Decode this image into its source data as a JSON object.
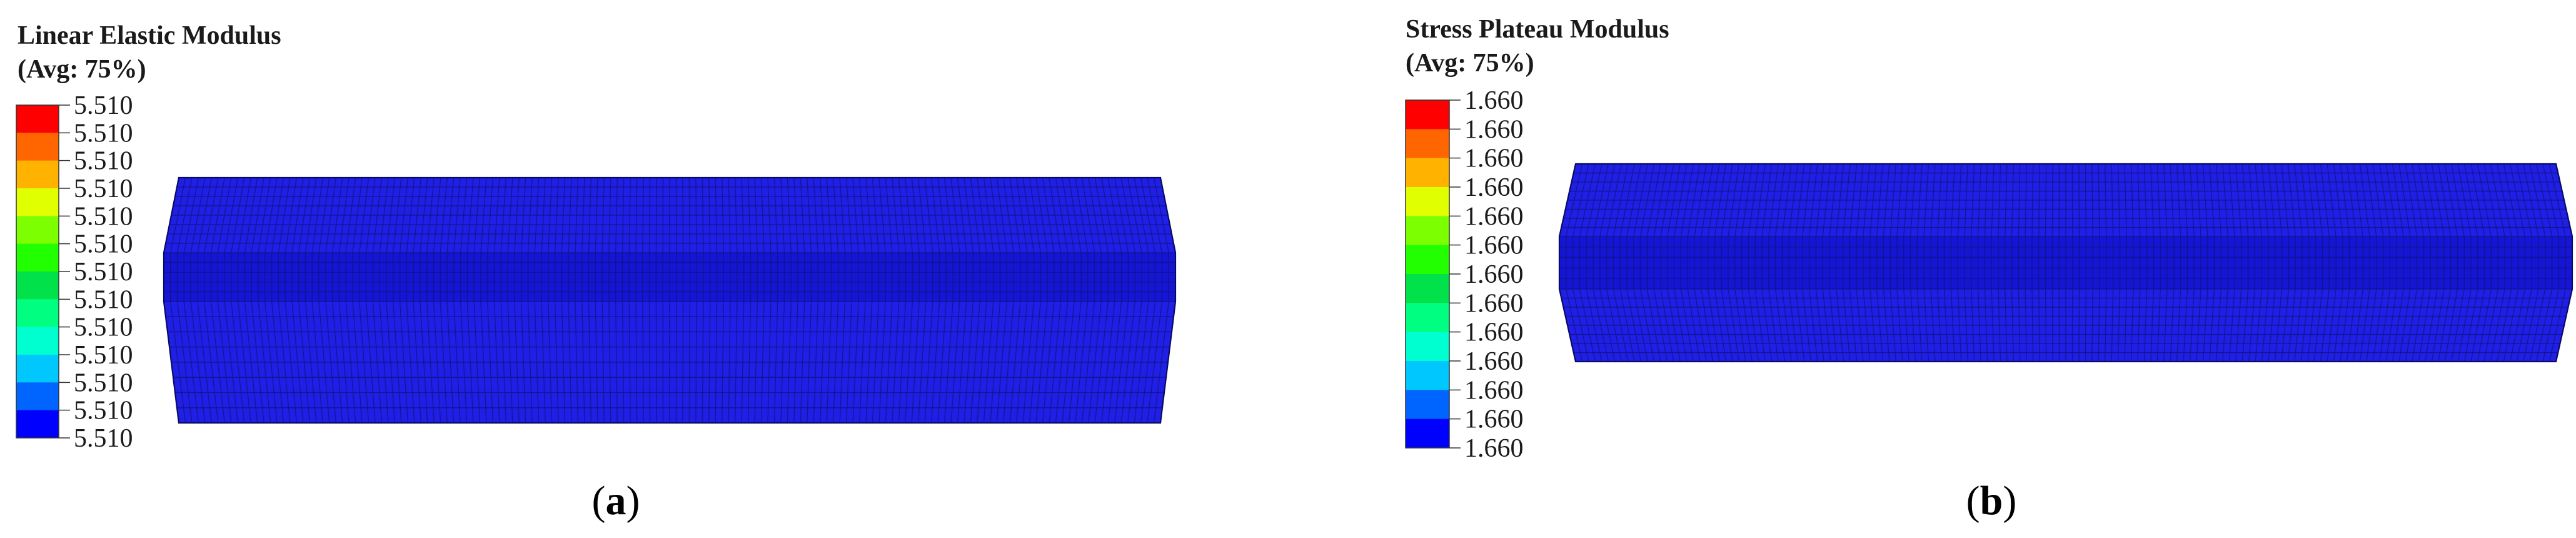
{
  "panels": [
    {
      "id": "a",
      "legend": {
        "title_line1": "Linear Elastic Modulus",
        "title_line2": "(Avg: 75%)",
        "values": [
          "5.510",
          "5.510",
          "5.510",
          "5.510",
          "5.510",
          "5.510",
          "5.510",
          "5.510",
          "5.510",
          "5.510",
          "5.510",
          "5.510",
          "5.510"
        ]
      },
      "caption": {
        "open": "(",
        "letter": "a",
        "close": ")"
      },
      "contour_color": "#1f1fe6"
    },
    {
      "id": "b",
      "legend": {
        "title_line1": "Stress Plateau Modulus",
        "title_line2": "(Avg: 75%)",
        "values": [
          "1.660",
          "1.660",
          "1.660",
          "1.660",
          "1.660",
          "1.660",
          "1.660",
          "1.660",
          "1.660",
          "1.660",
          "1.660",
          "1.660",
          "1.660"
        ]
      },
      "caption": {
        "open": "(",
        "letter": "b",
        "close": ")"
      },
      "contour_color": "#1f1fe6"
    }
  ],
  "colorbar": [
    "#ff0000",
    "#ff6600",
    "#ffb300",
    "#e0ff00",
    "#7cff00",
    "#22ff00",
    "#00e14a",
    "#00ff80",
    "#00ffd0",
    "#00c8ff",
    "#0064ff",
    "#0000ff"
  ]
}
